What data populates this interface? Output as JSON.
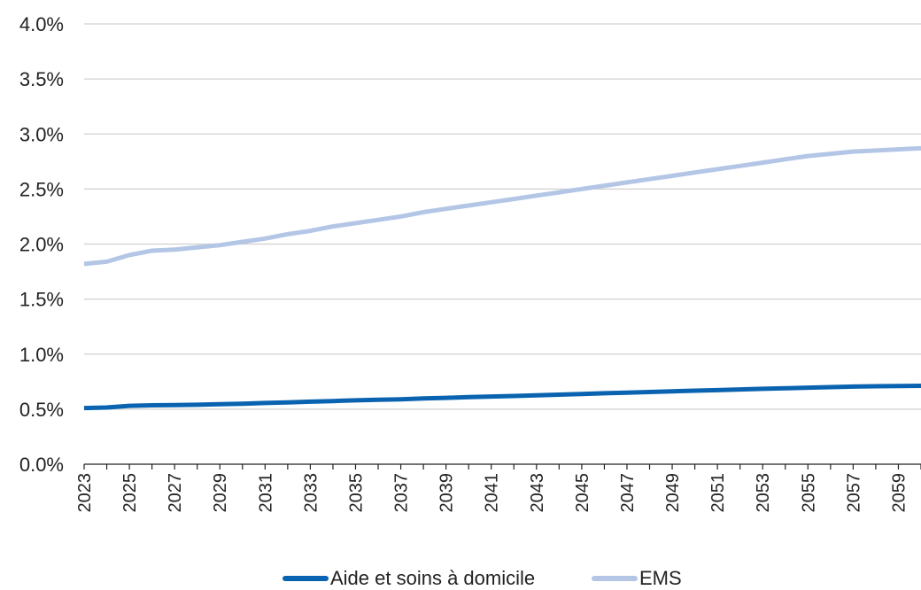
{
  "chart_data": {
    "type": "line",
    "title": "",
    "xlabel": "",
    "ylabel": "",
    "ylim": [
      0,
      0.04
    ],
    "y_ticks": [
      "0.0%",
      "0.5%",
      "1.0%",
      "1.5%",
      "2.0%",
      "2.5%",
      "3.0%",
      "3.5%",
      "4.0%"
    ],
    "x_ticks": [
      "2023",
      "2025",
      "2027",
      "2029",
      "2031",
      "2033",
      "2035",
      "2037",
      "2039",
      "2041",
      "2043",
      "2045",
      "2047",
      "2049",
      "2051",
      "2053",
      "2055",
      "2057",
      "2059"
    ],
    "x": [
      2023,
      2024,
      2025,
      2026,
      2027,
      2028,
      2029,
      2030,
      2031,
      2032,
      2033,
      2034,
      2035,
      2036,
      2037,
      2038,
      2039,
      2040,
      2041,
      2042,
      2043,
      2044,
      2045,
      2046,
      2047,
      2048,
      2049,
      2050,
      2051,
      2052,
      2053,
      2054,
      2055,
      2056,
      2057,
      2058,
      2059,
      2060
    ],
    "grid": true,
    "legend_position": "bottom",
    "series": [
      {
        "name": "Aide et soins à domicile",
        "color": "#0a63b0",
        "values": [
          0.0051,
          0.00515,
          0.0053,
          0.00535,
          0.00537,
          0.0054,
          0.00545,
          0.0055,
          0.00556,
          0.00562,
          0.00568,
          0.00574,
          0.0058,
          0.00585,
          0.0059,
          0.00597,
          0.00603,
          0.0061,
          0.00615,
          0.0062,
          0.00626,
          0.00632,
          0.00638,
          0.00645,
          0.0065,
          0.00656,
          0.00662,
          0.00668,
          0.00673,
          0.00679,
          0.00685,
          0.0069,
          0.00695,
          0.007,
          0.00705,
          0.00708,
          0.0071,
          0.00712
        ]
      },
      {
        "name": "EMS",
        "color": "#b3c6e6",
        "values": [
          0.0182,
          0.0184,
          0.019,
          0.0194,
          0.0195,
          0.0197,
          0.0199,
          0.0202,
          0.0205,
          0.0209,
          0.0212,
          0.0216,
          0.0219,
          0.0222,
          0.0225,
          0.0229,
          0.0232,
          0.0235,
          0.0238,
          0.0241,
          0.0244,
          0.0247,
          0.025,
          0.0253,
          0.0256,
          0.0259,
          0.0262,
          0.0265,
          0.0268,
          0.0271,
          0.0274,
          0.0277,
          0.028,
          0.0282,
          0.0284,
          0.0285,
          0.0286,
          0.0287
        ]
      }
    ]
  }
}
